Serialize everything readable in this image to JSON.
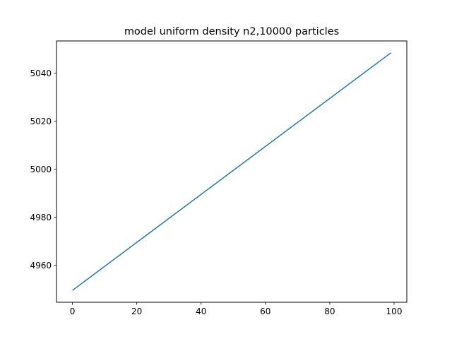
{
  "chart_data": {
    "type": "line",
    "title": "model uniform density n2,10000 particles",
    "xlabel": "",
    "ylabel": "",
    "xlim": [
      -4.95,
      103.95
    ],
    "ylim": [
      4944.55,
      5053.45
    ],
    "x_ticks": [
      0,
      20,
      40,
      60,
      80,
      100
    ],
    "y_ticks": [
      4960,
      4980,
      5000,
      5020,
      5040
    ],
    "grid": false,
    "legend": "none",
    "series": [
      {
        "color": "#1f77b4",
        "x": [
          0,
          99
        ],
        "y": [
          4949.5,
          5048.5
        ]
      }
    ]
  }
}
